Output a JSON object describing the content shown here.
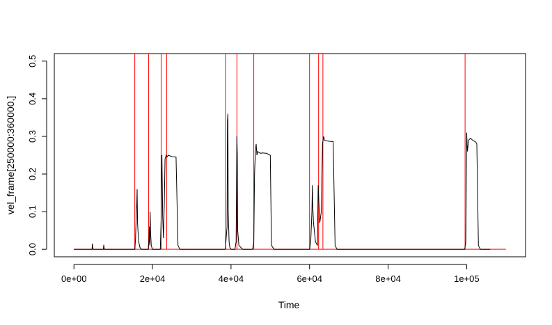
{
  "chart_data": {
    "type": "line",
    "title": "",
    "xlabel": "Time",
    "ylabel": "vel_frame[250000:360000,]",
    "xlim": [
      -5000,
      115000
    ],
    "ylim": [
      -0.02,
      0.52
    ],
    "x_ticks": [
      0,
      20000,
      40000,
      60000,
      80000,
      100000
    ],
    "x_tick_labels": [
      "0e+00",
      "2e+04",
      "4e+04",
      "6e+04",
      "8e+04",
      "1e+05"
    ],
    "y_ticks": [
      0.0,
      0.1,
      0.2,
      0.3,
      0.4,
      0.5
    ],
    "y_tick_labels": [
      "0.0",
      "0.1",
      "0.2",
      "0.3",
      "0.4",
      "0.5"
    ],
    "grid": false,
    "legend": "none",
    "colors": {
      "series": "#000000",
      "markers": "#ff0000"
    },
    "series": [
      {
        "x": [
          0,
          4600,
          4700,
          4800,
          4900,
          7500,
          7600,
          7700,
          7800,
          15500,
          15700,
          15900,
          16000,
          16100,
          16200,
          16300,
          16500,
          16800,
          17200,
          18900,
          19100,
          19200,
          19300,
          19400,
          19500,
          19700,
          20000,
          22000,
          22200,
          22300,
          22400,
          22600,
          22800,
          23000,
          23200,
          23500,
          23700,
          24000,
          25000,
          26000,
          26500,
          27000,
          27500,
          38500,
          38700,
          39000,
          39100,
          39200,
          39300,
          39500,
          39700,
          40000,
          41000,
          41300,
          41500,
          41600,
          41700,
          42000,
          43000,
          45500,
          45800,
          46000,
          46200,
          46400,
          46600,
          46800,
          47000,
          47500,
          48000,
          49000,
          50000,
          50300,
          51000,
          60000,
          60300,
          60600,
          60700,
          60800,
          61000,
          61500,
          62000,
          62200,
          62400,
          62600,
          63000,
          63300,
          63600,
          63800,
          64000,
          64500,
          65000,
          66000,
          66500,
          67000,
          67500,
          99500,
          99800,
          100000,
          100200,
          100500,
          101000,
          101500,
          102000,
          102300,
          102600,
          103000,
          103500,
          104000,
          105000,
          106000
        ],
        "y": [
          0,
          0,
          0.015,
          0.004,
          0,
          0,
          0.012,
          0.003,
          0,
          0,
          0.03,
          0.1,
          0.12,
          0.16,
          0.07,
          0.05,
          0.02,
          0.005,
          0,
          0,
          0.02,
          0.06,
          0.01,
          0.1,
          0.05,
          0.01,
          0,
          0,
          0.08,
          0.2,
          0.25,
          0.09,
          0.03,
          0.12,
          0.24,
          0.25,
          0.245,
          0.25,
          0.246,
          0.245,
          0.01,
          0,
          0,
          0,
          0.02,
          0.06,
          0.34,
          0.36,
          0.1,
          0.02,
          0.005,
          0,
          0,
          0.02,
          0.3,
          0.25,
          0.05,
          0.01,
          0,
          0,
          0.02,
          0.2,
          0.26,
          0.28,
          0.25,
          0.26,
          0.258,
          0.255,
          0.256,
          0.255,
          0.25,
          0.01,
          0,
          0,
          0.02,
          0.1,
          0.17,
          0.12,
          0.07,
          0.02,
          0.01,
          0.17,
          0.12,
          0.07,
          0.1,
          0.28,
          0.3,
          0.29,
          0.289,
          0.288,
          0.287,
          0.286,
          0.01,
          0,
          0,
          0,
          0.02,
          0.31,
          0.26,
          0.29,
          0.295,
          0.29,
          0.287,
          0.285,
          0.28,
          0.01,
          0,
          0,
          0,
          0
        ]
      }
    ],
    "markers": {
      "vertical_lines_x": [
        15500,
        19000,
        22200,
        23600,
        38600,
        41500,
        45800,
        60000,
        62300,
        63400,
        99600
      ],
      "baseline": {
        "y": 0,
        "x_from": 0,
        "x_to": 110000
      }
    }
  }
}
